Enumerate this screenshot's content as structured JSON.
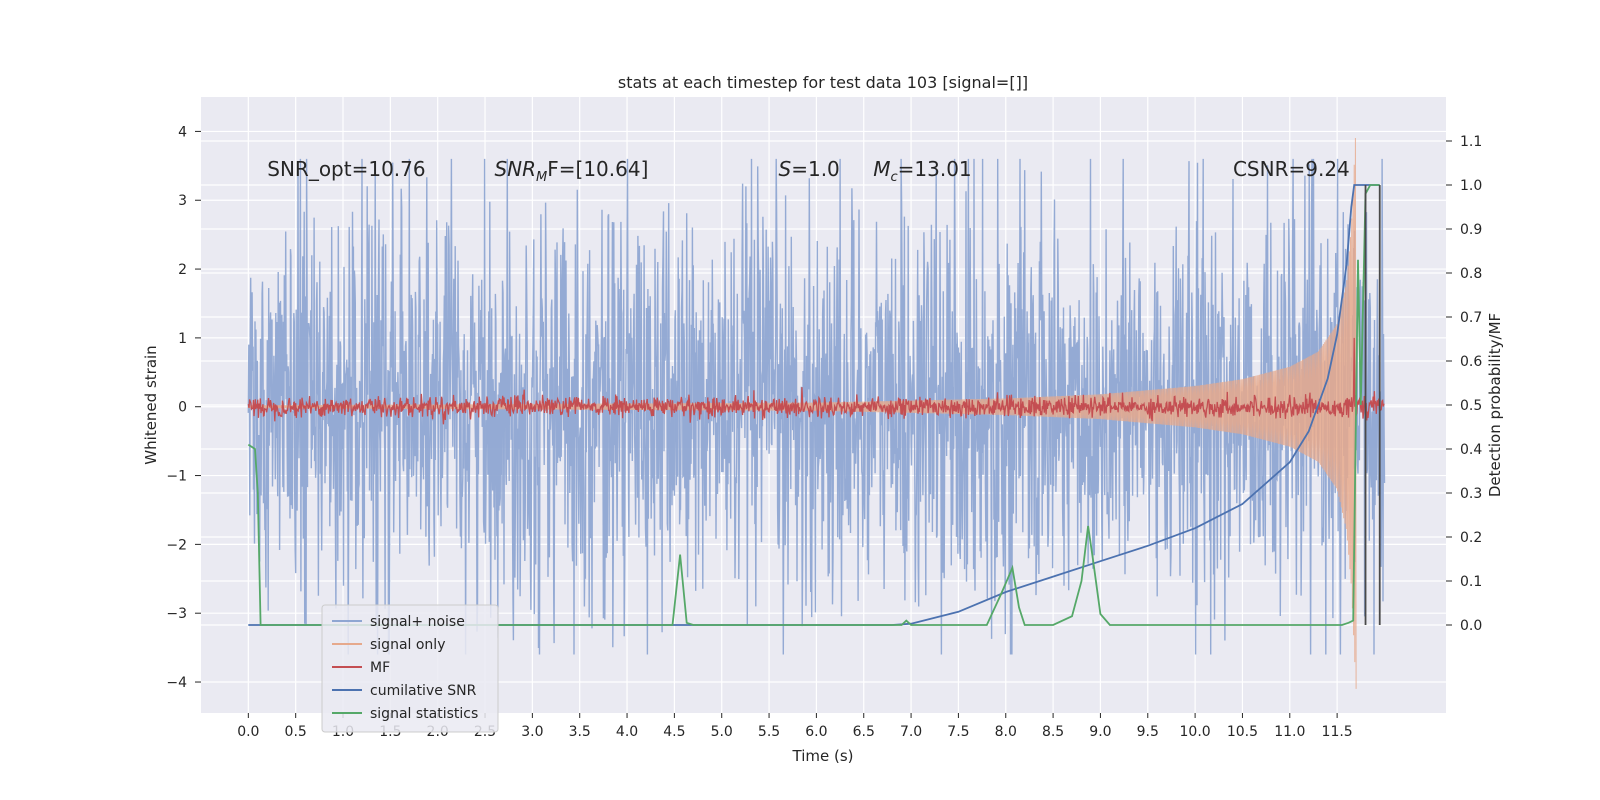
{
  "chart_data": {
    "type": "line",
    "title": "stats at each timestep for test data 103 [signal=[]]",
    "xlabel": "Time (s)",
    "ylabel": "Whitened strain",
    "y2label": "Detection probability/MF",
    "xlim": [
      -0.5,
      12.65
    ],
    "ylim": [
      -4.45,
      4.5
    ],
    "y2lim": [
      -0.2,
      1.2
    ],
    "x_ticks": [
      0.0,
      0.5,
      1.0,
      1.5,
      2.0,
      2.5,
      3.0,
      3.5,
      4.0,
      4.5,
      5.0,
      5.5,
      6.0,
      6.5,
      7.0,
      7.5,
      8.0,
      8.5,
      9.0,
      9.5,
      10.0,
      10.5,
      11.0,
      11.5
    ],
    "x_tick_labels": [
      "0.0",
      "0.5",
      "1.0",
      "1.5",
      "2.0",
      "2.5",
      "3.0",
      "3.5",
      "4.0",
      "4.5",
      "5.0",
      "5.5",
      "6.0",
      "6.5",
      "7.0",
      "7.5",
      "8.0",
      "8.5",
      "9.0",
      "9.5",
      "10.0",
      "10.5",
      "11.0",
      "11.5"
    ],
    "y_ticks": [
      -4,
      -3,
      -2,
      -1,
      0,
      1,
      2,
      3,
      4
    ],
    "y_tick_labels": [
      "−4",
      "−3",
      "−2",
      "−1",
      "0",
      "1",
      "2",
      "3",
      "4"
    ],
    "y2_ticks": [
      0.0,
      0.1,
      0.2,
      0.3,
      0.4,
      0.5,
      0.6,
      0.7,
      0.8,
      0.9,
      1.0,
      1.1
    ],
    "y2_tick_labels": [
      "0.0",
      "0.1",
      "0.2",
      "0.3",
      "0.4",
      "0.5",
      "0.6",
      "0.7",
      "0.8",
      "0.9",
      "1.0",
      "1.1"
    ],
    "grid": true,
    "background": "#eaeaf2",
    "legend": {
      "position": "lower-left",
      "entries": [
        {
          "label": "signal+ noise",
          "color": "#8fa6d2"
        },
        {
          "label": "signal only",
          "color": "#e6a98c"
        },
        {
          "label": "MF",
          "color": "#c44e52"
        },
        {
          "label": "cumilative SNR",
          "color": "#4c72b0"
        },
        {
          "label": "signal statistics",
          "color": "#55a868"
        }
      ]
    },
    "annotations": [
      {
        "id": "snr-opt",
        "text": "SNR_opt=10.76"
      },
      {
        "id": "snr-mf",
        "text": "SNR",
        "sub": "M",
        "suffix": "F=[10.64]"
      },
      {
        "id": "s-val",
        "text": "S",
        "suffix": "=1.0"
      },
      {
        "id": "mc-val",
        "text": "M",
        "sub": "c",
        "suffix": "=13.01"
      },
      {
        "id": "csnr",
        "text": "CSNR=9.24"
      }
    ],
    "series": [
      {
        "name": "signal+ noise",
        "axis": "left",
        "color": "#8fa6d2",
        "style": "noise",
        "x_range": [
          0.0,
          12.0
        ],
        "typical_amplitude": 2.0,
        "peak_amplitude": 3.6
      },
      {
        "name": "signal only",
        "axis": "left",
        "color": "#e6a98c",
        "style": "chirp",
        "envelope": {
          "x": [
            0.0,
            6.0,
            8.0,
            9.0,
            10.0,
            10.5,
            11.0,
            11.3,
            11.5,
            11.6,
            11.65,
            11.7
          ],
          "amp": [
            0.02,
            0.06,
            0.12,
            0.18,
            0.3,
            0.4,
            0.58,
            0.8,
            1.2,
            1.8,
            2.6,
            4.1
          ]
        }
      },
      {
        "name": "MF",
        "axis": "left",
        "color": "#c44e52",
        "style": "mf",
        "x_range": [
          0.0,
          12.0
        ],
        "typical_amplitude": 0.15,
        "spike": {
          "x": 11.68,
          "y": 1.0
        }
      },
      {
        "name": "cumilative SNR",
        "axis": "right",
        "color": "#4c72b0",
        "x": [
          0.0,
          6.8,
          7.0,
          7.5,
          8.0,
          8.5,
          9.0,
          9.5,
          10.0,
          10.5,
          11.0,
          11.2,
          11.4,
          11.5,
          11.6,
          11.65,
          11.68,
          11.8,
          11.95
        ],
        "y": [
          0.0,
          0.0,
          0.003,
          0.03,
          0.075,
          0.11,
          0.145,
          0.18,
          0.22,
          0.275,
          0.37,
          0.44,
          0.56,
          0.66,
          0.82,
          0.95,
          1.0,
          1.0,
          1.0
        ]
      },
      {
        "name": "signal statistics",
        "axis": "right",
        "color": "#55a868",
        "x": [
          0.0,
          0.07,
          0.1,
          0.13,
          0.2,
          4.48,
          4.56,
          4.63,
          4.7,
          6.9,
          6.95,
          7.0,
          7.8,
          7.95,
          8.07,
          8.14,
          8.2,
          8.5,
          8.7,
          8.8,
          8.87,
          8.92,
          9.0,
          9.1,
          11.55,
          11.62,
          11.67,
          11.72,
          11.75,
          11.8,
          11.85,
          11.9,
          11.95
        ],
        "y": [
          0.41,
          0.4,
          0.3,
          0.0,
          0.0,
          0.0,
          0.16,
          0.005,
          0.0,
          0.0,
          0.01,
          0.0,
          0.0,
          0.07,
          0.13,
          0.04,
          0.0,
          0.0,
          0.02,
          0.1,
          0.225,
          0.15,
          0.025,
          0.0,
          0.0,
          0.005,
          0.01,
          0.83,
          0.5,
          0.98,
          1.0,
          1.0,
          1.0
        ]
      },
      {
        "name": "",
        "axis": "right",
        "color": "#4a4a4a",
        "style": "vline",
        "x": [
          11.8,
          11.95
        ],
        "y": [
          0.0,
          1.0
        ]
      }
    ]
  }
}
